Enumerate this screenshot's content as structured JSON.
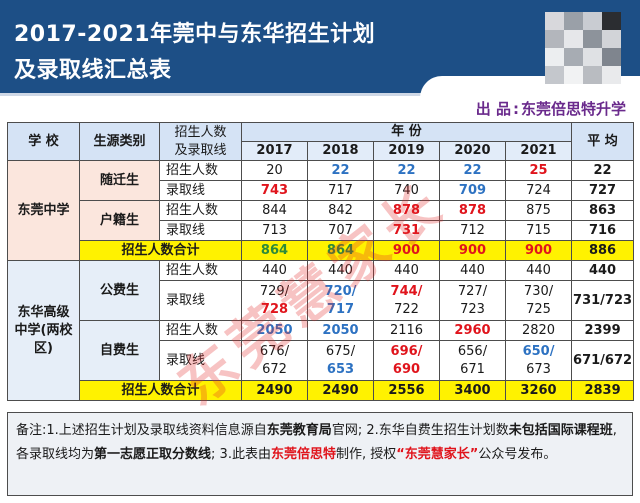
{
  "header": {
    "title_line1": "2017-2021年莞中与东华招生计划",
    "title_line2": "及录取线汇总表"
  },
  "source": {
    "label": "出  品",
    "colon": ":",
    "name": "东莞倍思特升学"
  },
  "table": {
    "headers": {
      "school": "学  校",
      "category": "生源类别",
      "metric_line1": "招生人数",
      "metric_line2": "及录取线",
      "year_group": "年  份",
      "average": "平  均"
    },
    "years": [
      "2017",
      "2018",
      "2019",
      "2020",
      "2021"
    ],
    "dongguan": {
      "school": "东莞中学",
      "suiqian": {
        "category": "随迁生",
        "enroll_label": "招生人数",
        "enroll": [
          "20",
          "22",
          "22",
          "22",
          "25"
        ],
        "enroll_avg": "22",
        "score_label": "录取线",
        "score": [
          "743",
          "717",
          "740",
          "709",
          "724"
        ],
        "score_avg": "727"
      },
      "huji": {
        "category": "户籍生",
        "enroll_label": "招生人数",
        "enroll": [
          "844",
          "842",
          "878",
          "878",
          "875"
        ],
        "enroll_avg": "863",
        "score_label": "录取线",
        "score": [
          "713",
          "707",
          "731",
          "712",
          "715"
        ],
        "score_avg": "716"
      },
      "total_label": "招生人数合计",
      "total": [
        "864",
        "864",
        "900",
        "900",
        "900"
      ],
      "total_avg": "886"
    },
    "donghua": {
      "school": "东华高级中学(两校区)",
      "gongfei": {
        "category": "公费生",
        "enroll_label": "招生人数",
        "enroll": [
          "440",
          "440",
          "440",
          "440",
          "440"
        ],
        "enroll_avg": "440",
        "score_label": "录取线",
        "score_top": [
          "729/",
          "720/",
          "744/",
          "727/",
          "730/"
        ],
        "score_bottom": [
          "728",
          "717",
          "722",
          "723",
          "725"
        ],
        "score_avg": "731/723"
      },
      "zifei": {
        "category": "自费生",
        "enroll_label": "招生人数",
        "enroll": [
          "2050",
          "2050",
          "2116",
          "2960",
          "2820"
        ],
        "enroll_avg": "2399",
        "score_label": "录取线",
        "score_top": [
          "676/",
          "675/",
          "696/",
          "656/",
          "650/"
        ],
        "score_bottom": [
          "672",
          "653",
          "690",
          "671",
          "673"
        ],
        "score_avg": "671/672"
      },
      "total_label": "招生人数合计",
      "total": [
        "2490",
        "2490",
        "2556",
        "3400",
        "3260"
      ],
      "total_avg": "2839"
    }
  },
  "note": {
    "p1": "备注:1.上述招生计划及录取线资料信息源自",
    "p2": "东莞教育局",
    "p3": "官网; 2.东华自费生招生计划数",
    "p4": "未包括国际课程班",
    "p5": ", 各录取线均为",
    "p6": "第一志愿正取分数线",
    "p7": "; 3.此表由",
    "p8": "东莞倍思特",
    "p9": "制作, 授权",
    "p10": "“东莞慧家长”",
    "p11": "公众号发布。"
  },
  "watermark": "东莞慧家长",
  "colors": {
    "header_bg": "#1d4f86",
    "highlight_red": "#e0141c",
    "highlight_blue": "#2d72c2",
    "total_row": "#fff200",
    "source_text": "#6a2a8c"
  }
}
